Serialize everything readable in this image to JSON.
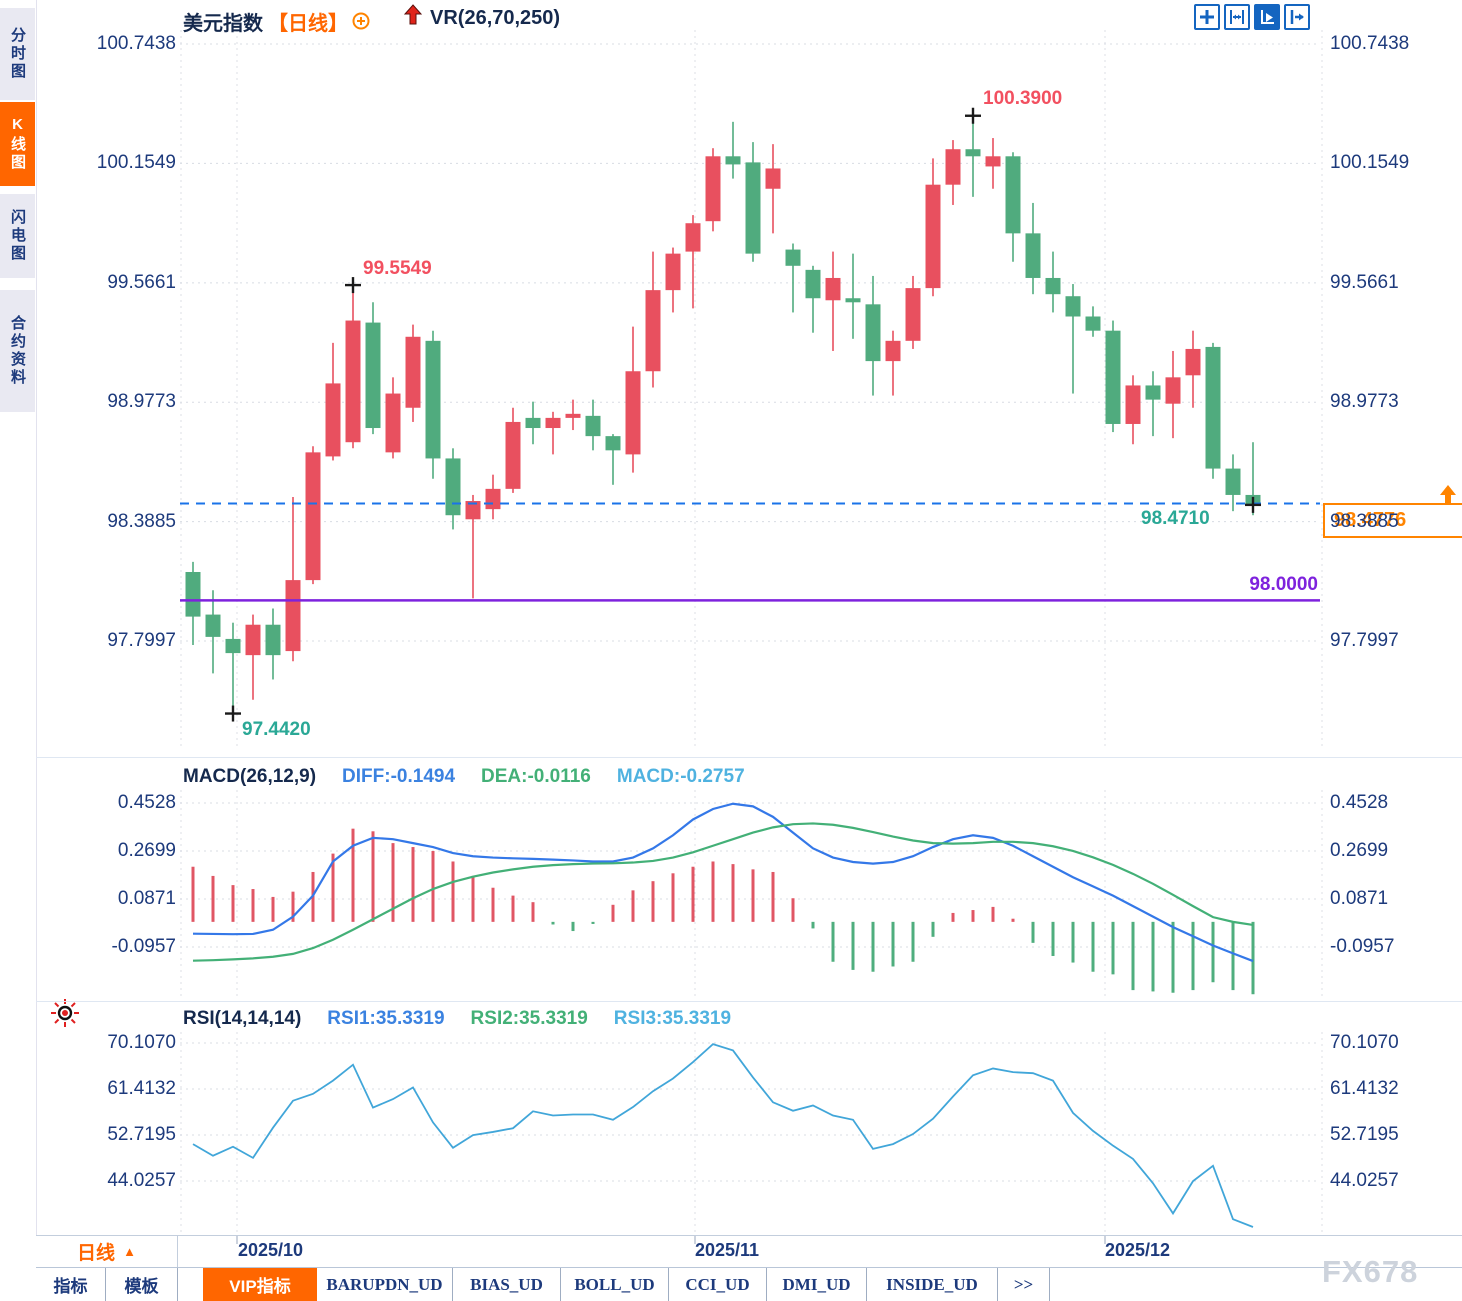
{
  "header": {
    "symbol": "美元指数",
    "period": "【日线】",
    "indicator": "VR(26,70,250)"
  },
  "sidebar": {
    "items": [
      {
        "label": "分时图",
        "active": false
      },
      {
        "label": "K线图",
        "active": true
      },
      {
        "label": "闪电图",
        "active": false
      },
      {
        "label": "合约资料",
        "active": false
      }
    ]
  },
  "toolbar": {
    "icons": [
      "pan-crosshair-icon",
      "axis-scale-icon",
      "auto-scale-icon",
      "scroll-to-latest-icon"
    ]
  },
  "annotations": {
    "high1": "99.5549",
    "high2": "100.3900",
    "low1": "97.4420",
    "last_price": "98.4710",
    "price_tag": "98.4776",
    "purple_level": "98.0000"
  },
  "macd_header": {
    "title": "MACD(26,12,9)",
    "diff": "DIFF:-0.1494",
    "dea": "DEA:-0.0116",
    "macd": "MACD:-0.2757"
  },
  "rsi_header": {
    "title": "RSI(14,14,14)",
    "rsi1": "RSI1:35.3319",
    "rsi2": "RSI2:35.3319",
    "rsi3": "RSI3:35.3319"
  },
  "xaxis": {
    "period_box": "日线",
    "labels": [
      "2025/10",
      "2025/11",
      "2025/12"
    ]
  },
  "bottom_tabs": [
    "指标",
    "模板",
    "VIP指标",
    "BARUPDN_UD",
    "BIAS_UD",
    "BOLL_UD",
    "CCI_UD",
    "DMI_UD",
    "INSIDE_UD",
    ">>"
  ],
  "watermark": "FX678",
  "colors": {
    "up": "#e8505f",
    "down": "#50ab7e",
    "accent_orange": "#ff6600",
    "tag_orange": "#ff8400",
    "axis_text": "#1d3a7c",
    "diff_line": "#3478e8",
    "dea_line": "#43b077",
    "rsi_line": "#41a6d9",
    "purple_line": "#7e22dd",
    "dashed_line": "#1a73e8",
    "teal_label": "#2aa896",
    "red_label": "#f25060"
  },
  "chart_data": [
    {
      "type": "candlestick",
      "title": "美元指数 日线",
      "x_labels": [
        "2025/10",
        "2025/11",
        "2025/12"
      ],
      "y_ticks": [
        100.7438,
        100.1549,
        99.5661,
        98.9773,
        98.3885,
        97.7997
      ],
      "y_tick_labels": [
        "100.7438",
        "100.1549",
        "99.5661",
        "98.9773",
        "98.3885",
        "97.7997"
      ],
      "overlays": {
        "horizontal_line": 98.0,
        "last_price_dashed_line": 98.4776,
        "markers": [
          {
            "index": 2,
            "at": "low",
            "label": "97.4420"
          },
          {
            "index": 8,
            "at": "high",
            "label": "99.5549"
          },
          {
            "index": 39,
            "at": "high",
            "label": "100.3900"
          },
          {
            "index": 53,
            "at": "close",
            "label": ""
          }
        ]
      },
      "ohlc": [
        [
          98.14,
          98.19,
          97.78,
          97.92
        ],
        [
          97.93,
          98.05,
          97.64,
          97.82
        ],
        [
          97.81,
          97.89,
          97.442,
          97.74
        ],
        [
          97.73,
          97.93,
          97.51,
          97.88
        ],
        [
          97.88,
          97.96,
          97.61,
          97.73
        ],
        [
          97.75,
          98.51,
          97.7,
          98.1
        ],
        [
          98.1,
          98.76,
          98.08,
          98.73
        ],
        [
          98.71,
          99.27,
          98.69,
          99.07
        ],
        [
          98.78,
          99.5549,
          98.75,
          99.38
        ],
        [
          99.37,
          99.47,
          98.82,
          98.85
        ],
        [
          98.73,
          99.1,
          98.7,
          99.02
        ],
        [
          98.95,
          99.36,
          98.88,
          99.3
        ],
        [
          99.28,
          99.33,
          98.6,
          98.7
        ],
        [
          98.7,
          98.75,
          98.35,
          98.42
        ],
        [
          98.4,
          98.52,
          98.01,
          98.49
        ],
        [
          98.45,
          98.62,
          98.4,
          98.55
        ],
        [
          98.55,
          98.95,
          98.53,
          98.88
        ],
        [
          98.9,
          98.98,
          98.77,
          98.85
        ],
        [
          98.85,
          98.93,
          98.72,
          98.9
        ],
        [
          98.9,
          98.99,
          98.84,
          98.92
        ],
        [
          98.91,
          98.99,
          98.74,
          98.81
        ],
        [
          98.81,
          98.82,
          98.57,
          98.74
        ],
        [
          98.72,
          99.35,
          98.63,
          99.13
        ],
        [
          99.13,
          99.72,
          99.05,
          99.53
        ],
        [
          99.53,
          99.74,
          99.42,
          99.71
        ],
        [
          99.72,
          99.9,
          99.44,
          99.86
        ],
        [
          99.87,
          100.23,
          99.82,
          100.19
        ],
        [
          100.19,
          100.36,
          100.08,
          100.15
        ],
        [
          100.16,
          100.26,
          99.67,
          99.71
        ],
        [
          100.03,
          100.25,
          99.81,
          100.13
        ],
        [
          99.73,
          99.76,
          99.42,
          99.65
        ],
        [
          99.63,
          99.65,
          99.32,
          99.49
        ],
        [
          99.48,
          99.72,
          99.23,
          99.59
        ],
        [
          99.49,
          99.71,
          99.29,
          99.47
        ],
        [
          99.46,
          99.6,
          99.01,
          99.18
        ],
        [
          99.18,
          99.33,
          99.01,
          99.28
        ],
        [
          99.28,
          99.6,
          99.24,
          99.54
        ],
        [
          99.54,
          100.18,
          99.5,
          100.05
        ],
        [
          100.05,
          100.27,
          99.95,
          100.2249
        ],
        [
          100.2249,
          100.39,
          99.99,
          100.19
        ],
        [
          100.14,
          100.28,
          100.03,
          100.19
        ],
        [
          100.19,
          100.21,
          99.67,
          99.81
        ],
        [
          99.81,
          99.96,
          99.51,
          99.59
        ],
        [
          99.59,
          99.72,
          99.42,
          99.51
        ],
        [
          99.5,
          99.56,
          99.02,
          99.4
        ],
        [
          99.4,
          99.45,
          99.3,
          99.33
        ],
        [
          99.33,
          99.38,
          98.83,
          98.87
        ],
        [
          98.87,
          99.11,
          98.77,
          99.06
        ],
        [
          99.06,
          99.13,
          98.81,
          98.99
        ],
        [
          98.97,
          99.23,
          98.8,
          99.1
        ],
        [
          99.11,
          99.33,
          98.95,
          99.24
        ],
        [
          99.25,
          99.27,
          98.6,
          98.65
        ],
        [
          98.65,
          98.72,
          98.44,
          98.52
        ],
        [
          98.52,
          98.78,
          98.42,
          98.471
        ]
      ]
    },
    {
      "type": "macd",
      "title": "MACD(26,12,9)",
      "y_ticks": [
        0.4528,
        0.2699,
        0.0871,
        -0.0957
      ],
      "y_tick_labels": [
        "0.4528",
        "0.2699",
        "0.0871",
        "-0.0957"
      ],
      "diff": [
        -0.045,
        -0.046,
        -0.047,
        -0.046,
        -0.03,
        0.02,
        0.1,
        0.23,
        0.29,
        0.32,
        0.315,
        0.3,
        0.285,
        0.262,
        0.25,
        0.245,
        0.242,
        0.24,
        0.237,
        0.234,
        0.23,
        0.23,
        0.245,
        0.28,
        0.33,
        0.39,
        0.43,
        0.45,
        0.44,
        0.4,
        0.34,
        0.28,
        0.245,
        0.228,
        0.222,
        0.228,
        0.25,
        0.285,
        0.315,
        0.33,
        0.32,
        0.29,
        0.25,
        0.21,
        0.17,
        0.135,
        0.1,
        0.06,
        0.02,
        -0.02,
        -0.055,
        -0.09,
        -0.12,
        -0.1494
      ],
      "dea": [
        -0.148,
        -0.146,
        -0.143,
        -0.139,
        -0.133,
        -0.122,
        -0.1,
        -0.068,
        -0.03,
        0.01,
        0.05,
        0.09,
        0.125,
        0.152,
        0.172,
        0.188,
        0.2,
        0.21,
        0.216,
        0.22,
        0.222,
        0.223,
        0.226,
        0.232,
        0.245,
        0.265,
        0.29,
        0.315,
        0.34,
        0.36,
        0.372,
        0.375,
        0.37,
        0.358,
        0.342,
        0.325,
        0.31,
        0.3,
        0.298,
        0.3,
        0.305,
        0.305,
        0.3,
        0.288,
        0.27,
        0.246,
        0.217,
        0.183,
        0.145,
        0.103,
        0.06,
        0.018,
        0.0,
        -0.0116
      ],
      "hist": [
        0.21,
        0.175,
        0.14,
        0.125,
        0.095,
        0.115,
        0.19,
        0.26,
        0.355,
        0.345,
        0.3,
        0.285,
        0.27,
        0.23,
        0.175,
        0.13,
        0.1,
        0.075,
        -0.01,
        -0.035,
        -0.008,
        0.065,
        0.12,
        0.155,
        0.185,
        0.21,
        0.23,
        0.22,
        0.2,
        0.19,
        0.09,
        -0.025,
        -0.152,
        -0.183,
        -0.19,
        -0.17,
        -0.152,
        -0.057,
        0.034,
        0.045,
        0.057,
        0.012,
        -0.08,
        -0.13,
        -0.155,
        -0.19,
        -0.2,
        -0.26,
        -0.265,
        -0.27,
        -0.26,
        -0.23,
        -0.26,
        -0.2757
      ]
    },
    {
      "type": "line",
      "title": "RSI(14,14,14)",
      "y_ticks": [
        70.107,
        61.4132,
        52.7195,
        44.0257
      ],
      "y_tick_labels": [
        "70.1070",
        "61.4132",
        "52.7195",
        "44.0257"
      ],
      "values": [
        51.0,
        48.8,
        50.5,
        48.4,
        54.1,
        59.2,
        60.5,
        63.0,
        66.0,
        57.9,
        59.5,
        61.7,
        55.1,
        50.3,
        52.7,
        53.3,
        54.0,
        57.2,
        56.4,
        56.6,
        56.6,
        55.6,
        58.0,
        61.0,
        63.4,
        66.5,
        69.9,
        68.7,
        63.6,
        58.9,
        57.3,
        58.3,
        56.4,
        55.6,
        50.1,
        51.0,
        52.9,
        55.8,
        60.0,
        64.0,
        65.3,
        64.6,
        64.4,
        63.0,
        56.9,
        53.5,
        50.7,
        48.2,
        43.6,
        37.9,
        44.0,
        46.9,
        36.8,
        35.3319
      ]
    }
  ]
}
